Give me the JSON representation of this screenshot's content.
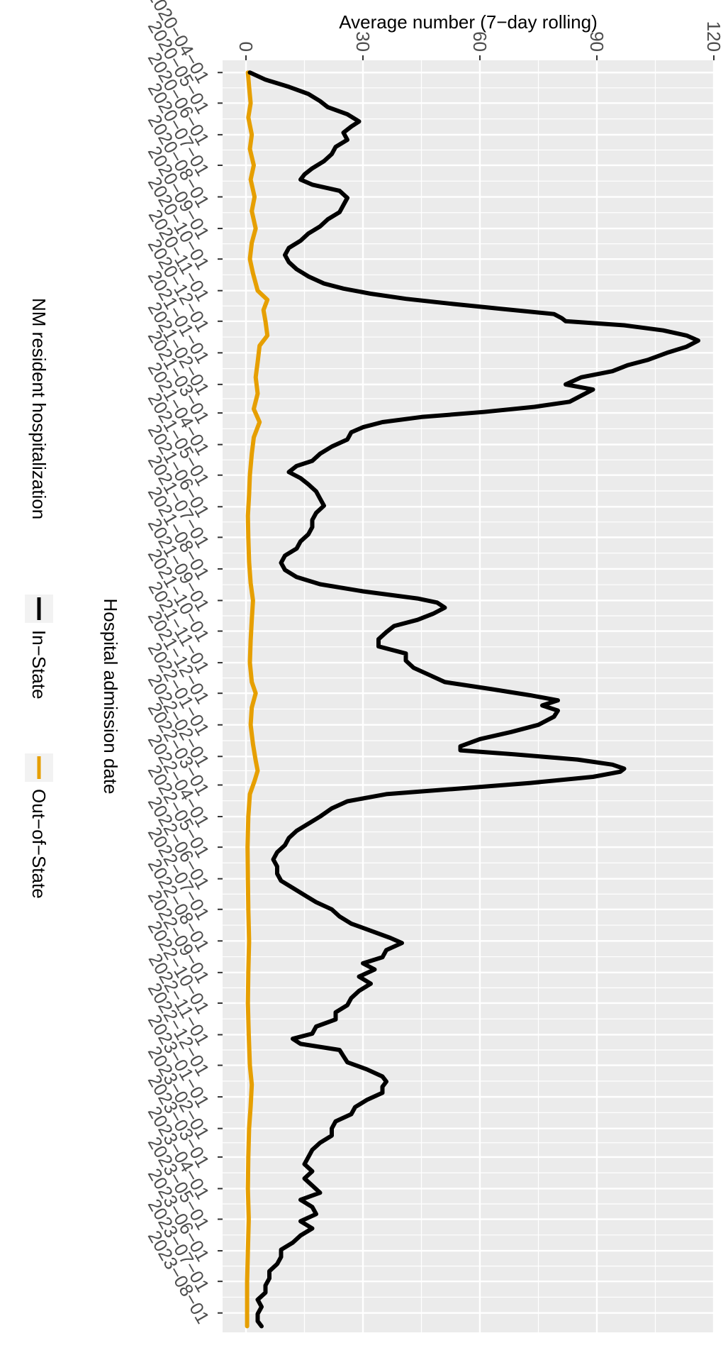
{
  "chart_data": {
    "type": "line",
    "title": "",
    "xlabel": "Hospital admission date",
    "ylabel": "Average number (7−day rolling)",
    "xlim": [
      "2020-03-20",
      "2023-08-20"
    ],
    "ylim": [
      -6,
      120
    ],
    "y_ticks": [
      0,
      30,
      60,
      90,
      120
    ],
    "y_tick_labels": [
      "0",
      "30",
      "60",
      "90",
      "120"
    ],
    "x_ticks": [
      "2020-04-01",
      "2020-05-01",
      "2020-06-01",
      "2020-07-01",
      "2020-08-01",
      "2020-09-01",
      "2020-10-01",
      "2020-11-01",
      "2020-12-01",
      "2021-01-01",
      "2021-02-01",
      "2021-03-01",
      "2021-04-01",
      "2021-05-01",
      "2021-06-01",
      "2021-07-01",
      "2021-08-01",
      "2021-09-01",
      "2021-10-01",
      "2021-11-01",
      "2021-12-01",
      "2022-01-01",
      "2022-02-01",
      "2022-03-01",
      "2022-04-01",
      "2022-05-01",
      "2022-06-01",
      "2022-07-01",
      "2022-08-01",
      "2022-09-01",
      "2022-10-01",
      "2022-11-01",
      "2022-12-01",
      "2023-01-01",
      "2023-02-01",
      "2023-03-01",
      "2023-04-01",
      "2023-05-01",
      "2023-06-01",
      "2023-07-01",
      "2023-08-01"
    ],
    "x_tick_labels": [
      "2020−04−01",
      "2020−05−01",
      "2020−06−01",
      "2020−07−01",
      "2020−08−01",
      "2020−09−01",
      "2020−10−01",
      "2020−11−01",
      "2020−12−01",
      "2021−01−01",
      "2021−02−01",
      "2021−03−01",
      "2021−04−01",
      "2021−05−01",
      "2021−06−01",
      "2021−07−01",
      "2021−08−01",
      "2021−09−01",
      "2021−10−01",
      "2021−11−01",
      "2021−12−01",
      "2022−01−01",
      "2022−02−01",
      "2022−03−01",
      "2022−04−01",
      "2022−05−01",
      "2022−06−01",
      "2022−07−01",
      "2022−08−01",
      "2022−09−01",
      "2022−10−01",
      "2022−11−01",
      "2022−12−01",
      "2023−01−01",
      "2023−02−01",
      "2023−03−01",
      "2023−04−01",
      "2023−05−01",
      "2023−06−01",
      "2023−07−01",
      "2023−08−01"
    ],
    "grid": true,
    "legend_title": "NM resident hospitalization",
    "legend_position": "bottom",
    "series": [
      {
        "name": "In−State",
        "color": "#000000",
        "points": [
          [
            "2020-04-01",
            1
          ],
          [
            "2020-04-08",
            5
          ],
          [
            "2020-04-15",
            11
          ],
          [
            "2020-04-22",
            16
          ],
          [
            "2020-04-29",
            19
          ],
          [
            "2020-05-05",
            21
          ],
          [
            "2020-05-12",
            26
          ],
          [
            "2020-05-19",
            29
          ],
          [
            "2020-05-24",
            27
          ],
          [
            "2020-05-30",
            25
          ],
          [
            "2020-06-06",
            26
          ],
          [
            "2020-06-13",
            23
          ],
          [
            "2020-06-20",
            22
          ],
          [
            "2020-06-27",
            20
          ],
          [
            "2020-07-04",
            17
          ],
          [
            "2020-07-10",
            15
          ],
          [
            "2020-07-15",
            14
          ],
          [
            "2020-07-20",
            17
          ],
          [
            "2020-07-26",
            24
          ],
          [
            "2020-08-02",
            26
          ],
          [
            "2020-08-09",
            25
          ],
          [
            "2020-08-16",
            24
          ],
          [
            "2020-08-23",
            21
          ],
          [
            "2020-08-30",
            19
          ],
          [
            "2020-09-06",
            16
          ],
          [
            "2020-09-13",
            14
          ],
          [
            "2020-09-20",
            11
          ],
          [
            "2020-09-27",
            10
          ],
          [
            "2020-10-04",
            11
          ],
          [
            "2020-10-11",
            13
          ],
          [
            "2020-10-18",
            16
          ],
          [
            "2020-10-25",
            20
          ],
          [
            "2020-10-30",
            25
          ],
          [
            "2020-11-04",
            32
          ],
          [
            "2020-11-09",
            41
          ],
          [
            "2020-11-14",
            53
          ],
          [
            "2020-11-19",
            66
          ],
          [
            "2020-11-24",
            79
          ],
          [
            "2020-11-28",
            81
          ],
          [
            "2020-12-01",
            82
          ],
          [
            "2020-12-05",
            97
          ],
          [
            "2020-12-10",
            107
          ],
          [
            "2020-12-15",
            113
          ],
          [
            "2020-12-20",
            116
          ],
          [
            "2020-12-26",
            113
          ],
          [
            "2021-01-01",
            108
          ],
          [
            "2021-01-08",
            103
          ],
          [
            "2021-01-13",
            98
          ],
          [
            "2021-01-19",
            94
          ],
          [
            "2021-01-25",
            86
          ],
          [
            "2021-02-01",
            82
          ],
          [
            "2021-02-06",
            89
          ],
          [
            "2021-02-12",
            86
          ],
          [
            "2021-02-18",
            83
          ],
          [
            "2021-02-23",
            74
          ],
          [
            "2021-02-28",
            61
          ],
          [
            "2021-03-05",
            45
          ],
          [
            "2021-03-10",
            35
          ],
          [
            "2021-03-15",
            30
          ],
          [
            "2021-03-20",
            27
          ],
          [
            "2021-03-27",
            26
          ],
          [
            "2021-04-03",
            22
          ],
          [
            "2021-04-10",
            19
          ],
          [
            "2021-04-17",
            17
          ],
          [
            "2021-04-22",
            13
          ],
          [
            "2021-04-28",
            11
          ],
          [
            "2021-05-04",
            14
          ],
          [
            "2021-05-10",
            16
          ],
          [
            "2021-05-17",
            18
          ],
          [
            "2021-05-24",
            19
          ],
          [
            "2021-05-31",
            20
          ],
          [
            "2021-06-07",
            18
          ],
          [
            "2021-06-14",
            17
          ],
          [
            "2021-06-21",
            17
          ],
          [
            "2021-06-28",
            16
          ],
          [
            "2021-07-05",
            14
          ],
          [
            "2021-07-12",
            13
          ],
          [
            "2021-07-19",
            10
          ],
          [
            "2021-07-26",
            9
          ],
          [
            "2021-08-02",
            10
          ],
          [
            "2021-08-09",
            13
          ],
          [
            "2021-08-16",
            19
          ],
          [
            "2021-08-23",
            30
          ],
          [
            "2021-08-30",
            44
          ],
          [
            "2021-09-03",
            49
          ],
          [
            "2021-09-08",
            51
          ],
          [
            "2021-09-14",
            48
          ],
          [
            "2021-09-20",
            44
          ],
          [
            "2021-09-26",
            38
          ],
          [
            "2021-10-02",
            36
          ],
          [
            "2021-10-09",
            34
          ],
          [
            "2021-10-16",
            34
          ],
          [
            "2021-10-23",
            41
          ],
          [
            "2021-10-30",
            41
          ],
          [
            "2021-11-06",
            43
          ],
          [
            "2021-11-13",
            47
          ],
          [
            "2021-11-20",
            51
          ],
          [
            "2021-11-27",
            63
          ],
          [
            "2021-12-03",
            73
          ],
          [
            "2021-12-08",
            80
          ],
          [
            "2021-12-13",
            76
          ],
          [
            "2021-12-18",
            80
          ],
          [
            "2021-12-24",
            79
          ],
          [
            "2022-01-01",
            75
          ],
          [
            "2022-01-08",
            68
          ],
          [
            "2022-01-15",
            60
          ],
          [
            "2022-01-22",
            55
          ],
          [
            "2022-01-26",
            55
          ],
          [
            "2022-01-30",
            69
          ],
          [
            "2022-02-04",
            85
          ],
          [
            "2022-02-09",
            94
          ],
          [
            "2022-02-13",
            97
          ],
          [
            "2022-02-16",
            96
          ],
          [
            "2022-02-21",
            89
          ],
          [
            "2022-02-27",
            73
          ],
          [
            "2022-03-05",
            53
          ],
          [
            "2022-03-10",
            36
          ],
          [
            "2022-03-17",
            26
          ],
          [
            "2022-03-24",
            22
          ],
          [
            "2022-04-01",
            19
          ],
          [
            "2022-04-08",
            16
          ],
          [
            "2022-04-15",
            13
          ],
          [
            "2022-04-22",
            11
          ],
          [
            "2022-04-29",
            10
          ],
          [
            "2022-05-06",
            8
          ],
          [
            "2022-05-13",
            7
          ],
          [
            "2022-05-20",
            8
          ],
          [
            "2022-05-27",
            8
          ],
          [
            "2022-06-03",
            9
          ],
          [
            "2022-06-10",
            12
          ],
          [
            "2022-06-17",
            15
          ],
          [
            "2022-06-24",
            18
          ],
          [
            "2022-07-01",
            22
          ],
          [
            "2022-07-08",
            24
          ],
          [
            "2022-07-15",
            27
          ],
          [
            "2022-07-22",
            32
          ],
          [
            "2022-07-29",
            37
          ],
          [
            "2022-08-03",
            40
          ],
          [
            "2022-08-10",
            36
          ],
          [
            "2022-08-17",
            35
          ],
          [
            "2022-08-23",
            30
          ],
          [
            "2022-08-29",
            33
          ],
          [
            "2022-09-05",
            29
          ],
          [
            "2022-09-12",
            32
          ],
          [
            "2022-09-19",
            29
          ],
          [
            "2022-09-26",
            27
          ],
          [
            "2022-10-03",
            26
          ],
          [
            "2022-10-10",
            23
          ],
          [
            "2022-10-17",
            23
          ],
          [
            "2022-10-24",
            18
          ],
          [
            "2022-10-31",
            17
          ],
          [
            "2022-11-05",
            12
          ],
          [
            "2022-11-10",
            14
          ],
          [
            "2022-11-16",
            24
          ],
          [
            "2022-11-22",
            25
          ],
          [
            "2022-11-28",
            26
          ],
          [
            "2022-12-05",
            31
          ],
          [
            "2022-12-12",
            35
          ],
          [
            "2022-12-17",
            36
          ],
          [
            "2022-12-22",
            35
          ],
          [
            "2022-12-28",
            35
          ],
          [
            "2023-01-04",
            31
          ],
          [
            "2023-01-11",
            28
          ],
          [
            "2023-01-18",
            27
          ],
          [
            "2023-01-25",
            23
          ],
          [
            "2023-02-01",
            22
          ],
          [
            "2023-02-08",
            22
          ],
          [
            "2023-02-15",
            19
          ],
          [
            "2023-02-22",
            17
          ],
          [
            "2023-03-01",
            16
          ],
          [
            "2023-03-08",
            15
          ],
          [
            "2023-03-15",
            17
          ],
          [
            "2023-03-22",
            15
          ],
          [
            "2023-03-29",
            17
          ],
          [
            "2023-04-05",
            19
          ],
          [
            "2023-04-12",
            14
          ],
          [
            "2023-04-19",
            17
          ],
          [
            "2023-04-26",
            18
          ],
          [
            "2023-05-03",
            14
          ],
          [
            "2023-05-10",
            17
          ],
          [
            "2023-05-17",
            14
          ],
          [
            "2023-05-24",
            12
          ],
          [
            "2023-05-31",
            9
          ],
          [
            "2023-06-07",
            9
          ],
          [
            "2023-06-14",
            8
          ],
          [
            "2023-06-21",
            6
          ],
          [
            "2023-06-28",
            6
          ],
          [
            "2023-07-05",
            5
          ],
          [
            "2023-07-12",
            5
          ],
          [
            "2023-07-19",
            3
          ],
          [
            "2023-07-26",
            4
          ],
          [
            "2023-08-02",
            3
          ],
          [
            "2023-08-09",
            3
          ],
          [
            "2023-08-14",
            4
          ]
        ]
      },
      {
        "name": "Out−of−State",
        "color": "#E69F00",
        "points": [
          [
            "2020-04-01",
            0.5
          ],
          [
            "2020-04-15",
            0.8
          ],
          [
            "2020-05-01",
            1.2
          ],
          [
            "2020-05-15",
            0.6
          ],
          [
            "2020-06-01",
            1.5
          ],
          [
            "2020-06-15",
            1.0
          ],
          [
            "2020-07-01",
            2.0
          ],
          [
            "2020-07-15",
            1.2
          ],
          [
            "2020-08-01",
            2.2
          ],
          [
            "2020-08-15",
            1.5
          ],
          [
            "2020-09-01",
            2.5
          ],
          [
            "2020-09-15",
            1.5
          ],
          [
            "2020-10-01",
            1.0
          ],
          [
            "2020-10-15",
            1.8
          ],
          [
            "2020-11-01",
            3.0
          ],
          [
            "2020-11-10",
            5.5
          ],
          [
            "2020-11-20",
            4.5
          ],
          [
            "2020-12-01",
            5.0
          ],
          [
            "2020-12-15",
            5.5
          ],
          [
            "2020-12-25",
            3.5
          ],
          [
            "2021-01-10",
            3.0
          ],
          [
            "2021-01-25",
            2.5
          ],
          [
            "2021-02-10",
            3.0
          ],
          [
            "2021-02-25",
            2.0
          ],
          [
            "2021-03-10",
            3.5
          ],
          [
            "2021-03-25",
            2.0
          ],
          [
            "2021-04-10",
            1.5
          ],
          [
            "2021-05-01",
            1.0
          ],
          [
            "2021-05-20",
            0.8
          ],
          [
            "2021-06-10",
            0.5
          ],
          [
            "2021-07-01",
            0.6
          ],
          [
            "2021-07-25",
            0.8
          ],
          [
            "2021-08-15",
            1.2
          ],
          [
            "2021-09-01",
            1.8
          ],
          [
            "2021-09-20",
            1.5
          ],
          [
            "2021-10-10",
            1.2
          ],
          [
            "2021-11-01",
            1.0
          ],
          [
            "2021-11-20",
            1.5
          ],
          [
            "2021-12-01",
            2.5
          ],
          [
            "2021-12-15",
            1.5
          ],
          [
            "2022-01-01",
            1.2
          ],
          [
            "2022-01-20",
            1.8
          ],
          [
            "2022-02-05",
            2.5
          ],
          [
            "2022-02-15",
            3.0
          ],
          [
            "2022-02-25",
            2.2
          ],
          [
            "2022-03-10",
            1.0
          ],
          [
            "2022-04-01",
            0.6
          ],
          [
            "2022-05-01",
            0.4
          ],
          [
            "2022-06-01",
            0.5
          ],
          [
            "2022-07-01",
            0.6
          ],
          [
            "2022-08-01",
            0.8
          ],
          [
            "2022-09-01",
            0.6
          ],
          [
            "2022-10-01",
            0.5
          ],
          [
            "2022-11-01",
            0.7
          ],
          [
            "2022-12-01",
            1.0
          ],
          [
            "2022-12-20",
            1.5
          ],
          [
            "2023-01-10",
            1.2
          ],
          [
            "2023-02-01",
            0.8
          ],
          [
            "2023-03-01",
            0.6
          ],
          [
            "2023-04-01",
            0.5
          ],
          [
            "2023-05-01",
            0.7
          ],
          [
            "2023-06-01",
            0.5
          ],
          [
            "2023-07-01",
            0.3
          ],
          [
            "2023-08-14",
            0.3
          ]
        ]
      }
    ]
  }
}
